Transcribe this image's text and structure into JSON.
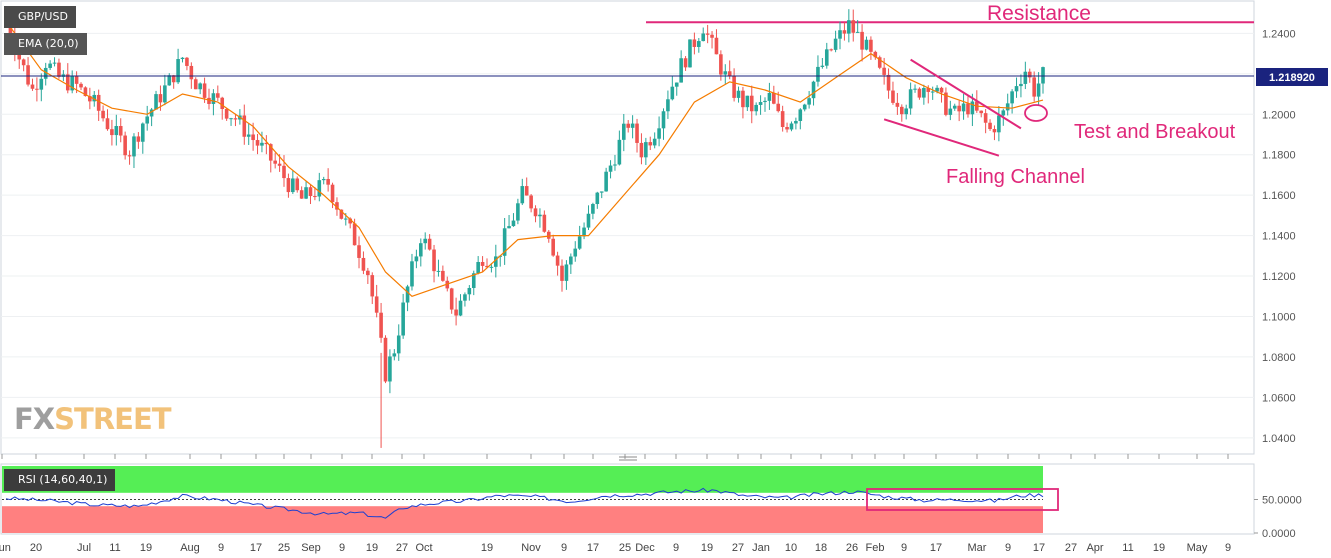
{
  "header": {
    "symbol": "GBP/USD",
    "ema_label": "EMA (20,0)",
    "rsi_label": "RSI (14,60,40,1)"
  },
  "brand": {
    "fx": "FX",
    "street": "STREET"
  },
  "annotations": {
    "resistance": "Resistance",
    "breakout": "Test and Breakout",
    "channel": "Falling Channel"
  },
  "colors": {
    "up_candle": "#26a69a",
    "down_candle": "#ef5350",
    "ema_line": "#f57c00",
    "annotation": "#e0287a",
    "price_line": "#1a237e",
    "rsi_line": "#1e40d0",
    "rsi_upper_zone": "#55ee55",
    "rsi_lower_zone": "#ff8080"
  },
  "chart_data": {
    "type": "candlestick",
    "instrument": "GBP/USD",
    "timeframe": "daily",
    "current_price": "1.218920",
    "ylim": [
      1.032,
      1.256
    ],
    "y_ticks": [
      "1.2400",
      "1.2200",
      "1.2000",
      "1.1800",
      "1.1600",
      "1.1400",
      "1.1200",
      "1.1000",
      "1.0800",
      "1.0600",
      "1.0400"
    ],
    "x_ticks": [
      "Jun",
      "20",
      "Jul",
      "11",
      "19",
      "Aug",
      "9",
      "17",
      "25",
      "Sep",
      "9",
      "19",
      "27",
      "Oct",
      "19",
      "Nov",
      "9",
      "17",
      "25",
      "Dec",
      "9",
      "19",
      "27",
      "Jan",
      "10",
      "18",
      "26",
      "Feb",
      "9",
      "17",
      "Mar",
      "9",
      "17",
      "27",
      "Apr",
      "11",
      "19",
      "May",
      "9"
    ],
    "close_path": [
      [
        0,
        1.246
      ],
      [
        3,
        1.228
      ],
      [
        6,
        1.212
      ],
      [
        9,
        1.226
      ],
      [
        12,
        1.218
      ],
      [
        16,
        1.214
      ],
      [
        20,
        1.205
      ],
      [
        24,
        1.192
      ],
      [
        28,
        1.182
      ],
      [
        31,
        1.196
      ],
      [
        34,
        1.206
      ],
      [
        37,
        1.216
      ],
      [
        40,
        1.228
      ],
      [
        43,
        1.216
      ],
      [
        46,
        1.21
      ],
      [
        49,
        1.204
      ],
      [
        52,
        1.198
      ],
      [
        55,
        1.19
      ],
      [
        58,
        1.183
      ],
      [
        61,
        1.175
      ],
      [
        64,
        1.166
      ],
      [
        67,
        1.158
      ],
      [
        70,
        1.162
      ],
      [
        73,
        1.166
      ],
      [
        76,
        1.15
      ],
      [
        79,
        1.138
      ],
      [
        82,
        1.122
      ],
      [
        84,
        1.098
      ],
      [
        86,
        1.072
      ],
      [
        88,
        1.084
      ],
      [
        91,
        1.114
      ],
      [
        94,
        1.14
      ],
      [
        96,
        1.132
      ],
      [
        99,
        1.114
      ],
      [
        102,
        1.102
      ],
      [
        105,
        1.116
      ],
      [
        108,
        1.13
      ],
      [
        111,
        1.128
      ],
      [
        114,
        1.144
      ],
      [
        117,
        1.16
      ],
      [
        120,
        1.154
      ],
      [
        123,
        1.142
      ],
      [
        126,
        1.118
      ],
      [
        129,
        1.136
      ],
      [
        132,
        1.148
      ],
      [
        135,
        1.164
      ],
      [
        138,
        1.18
      ],
      [
        141,
        1.196
      ],
      [
        144,
        1.182
      ],
      [
        147,
        1.192
      ],
      [
        150,
        1.21
      ],
      [
        153,
        1.224
      ],
      [
        156,
        1.236
      ],
      [
        158,
        1.244
      ],
      [
        161,
        1.228
      ],
      [
        164,
        1.214
      ],
      [
        167,
        1.206
      ],
      [
        170,
        1.202
      ],
      [
        173,
        1.208
      ],
      [
        176,
        1.194
      ],
      [
        179,
        1.2
      ],
      [
        182,
        1.212
      ],
      [
        185,
        1.224
      ],
      [
        188,
        1.236
      ],
      [
        191,
        1.244
      ],
      [
        194,
        1.236
      ],
      [
        197,
        1.224
      ],
      [
        200,
        1.212
      ],
      [
        203,
        1.205
      ],
      [
        206,
        1.21
      ],
      [
        209,
        1.216
      ],
      [
        212,
        1.206
      ],
      [
        215,
        1.2
      ],
      [
        218,
        1.204
      ],
      [
        221,
        1.198
      ],
      [
        223,
        1.192
      ],
      [
        226,
        1.2
      ],
      [
        229,
        1.216
      ],
      [
        231,
        1.222
      ],
      [
        233,
        1.212
      ],
      [
        235,
        1.219
      ]
    ],
    "ema_20_path": [
      [
        0,
        1.246
      ],
      [
        8,
        1.222
      ],
      [
        16,
        1.212
      ],
      [
        24,
        1.203
      ],
      [
        32,
        1.2
      ],
      [
        40,
        1.21
      ],
      [
        48,
        1.206
      ],
      [
        56,
        1.194
      ],
      [
        64,
        1.174
      ],
      [
        72,
        1.16
      ],
      [
        80,
        1.144
      ],
      [
        86,
        1.122
      ],
      [
        92,
        1.11
      ],
      [
        100,
        1.116
      ],
      [
        108,
        1.122
      ],
      [
        116,
        1.138
      ],
      [
        124,
        1.14
      ],
      [
        132,
        1.14
      ],
      [
        140,
        1.16
      ],
      [
        148,
        1.18
      ],
      [
        156,
        1.206
      ],
      [
        164,
        1.216
      ],
      [
        172,
        1.212
      ],
      [
        180,
        1.206
      ],
      [
        188,
        1.218
      ],
      [
        196,
        1.23
      ],
      [
        204,
        1.218
      ],
      [
        212,
        1.21
      ],
      [
        220,
        1.204
      ],
      [
        228,
        1.203
      ],
      [
        235,
        1.207
      ]
    ],
    "rsi": {
      "label": "RSI (14,60,40,1)",
      "ylim": [
        0,
        100
      ],
      "upper_level": 60,
      "lower_level": 40,
      "y_ticks": [
        "50.0000",
        "0.0000"
      ],
      "path": [
        [
          0,
          52
        ],
        [
          10,
          48
        ],
        [
          20,
          42
        ],
        [
          30,
          40
        ],
        [
          40,
          55
        ],
        [
          48,
          50
        ],
        [
          56,
          42
        ],
        [
          64,
          35
        ],
        [
          72,
          28
        ],
        [
          80,
          30
        ],
        [
          86,
          22
        ],
        [
          90,
          38
        ],
        [
          96,
          44
        ],
        [
          104,
          48
        ],
        [
          112,
          56
        ],
        [
          120,
          54
        ],
        [
          128,
          47
        ],
        [
          136,
          56
        ],
        [
          144,
          58
        ],
        [
          152,
          62
        ],
        [
          160,
          64
        ],
        [
          168,
          55
        ],
        [
          176,
          52
        ],
        [
          184,
          58
        ],
        [
          192,
          62
        ],
        [
          200,
          54
        ],
        [
          208,
          49
        ],
        [
          216,
          50
        ],
        [
          224,
          48
        ],
        [
          230,
          56
        ],
        [
          235,
          57
        ]
      ]
    },
    "resistance_level": 1.2455,
    "channel": {
      "upper": [
        [
          205,
          1.227
        ],
        [
          230,
          1.193
        ]
      ],
      "lower": [
        [
          199,
          1.1975
        ],
        [
          225,
          1.1795
        ]
      ]
    }
  }
}
